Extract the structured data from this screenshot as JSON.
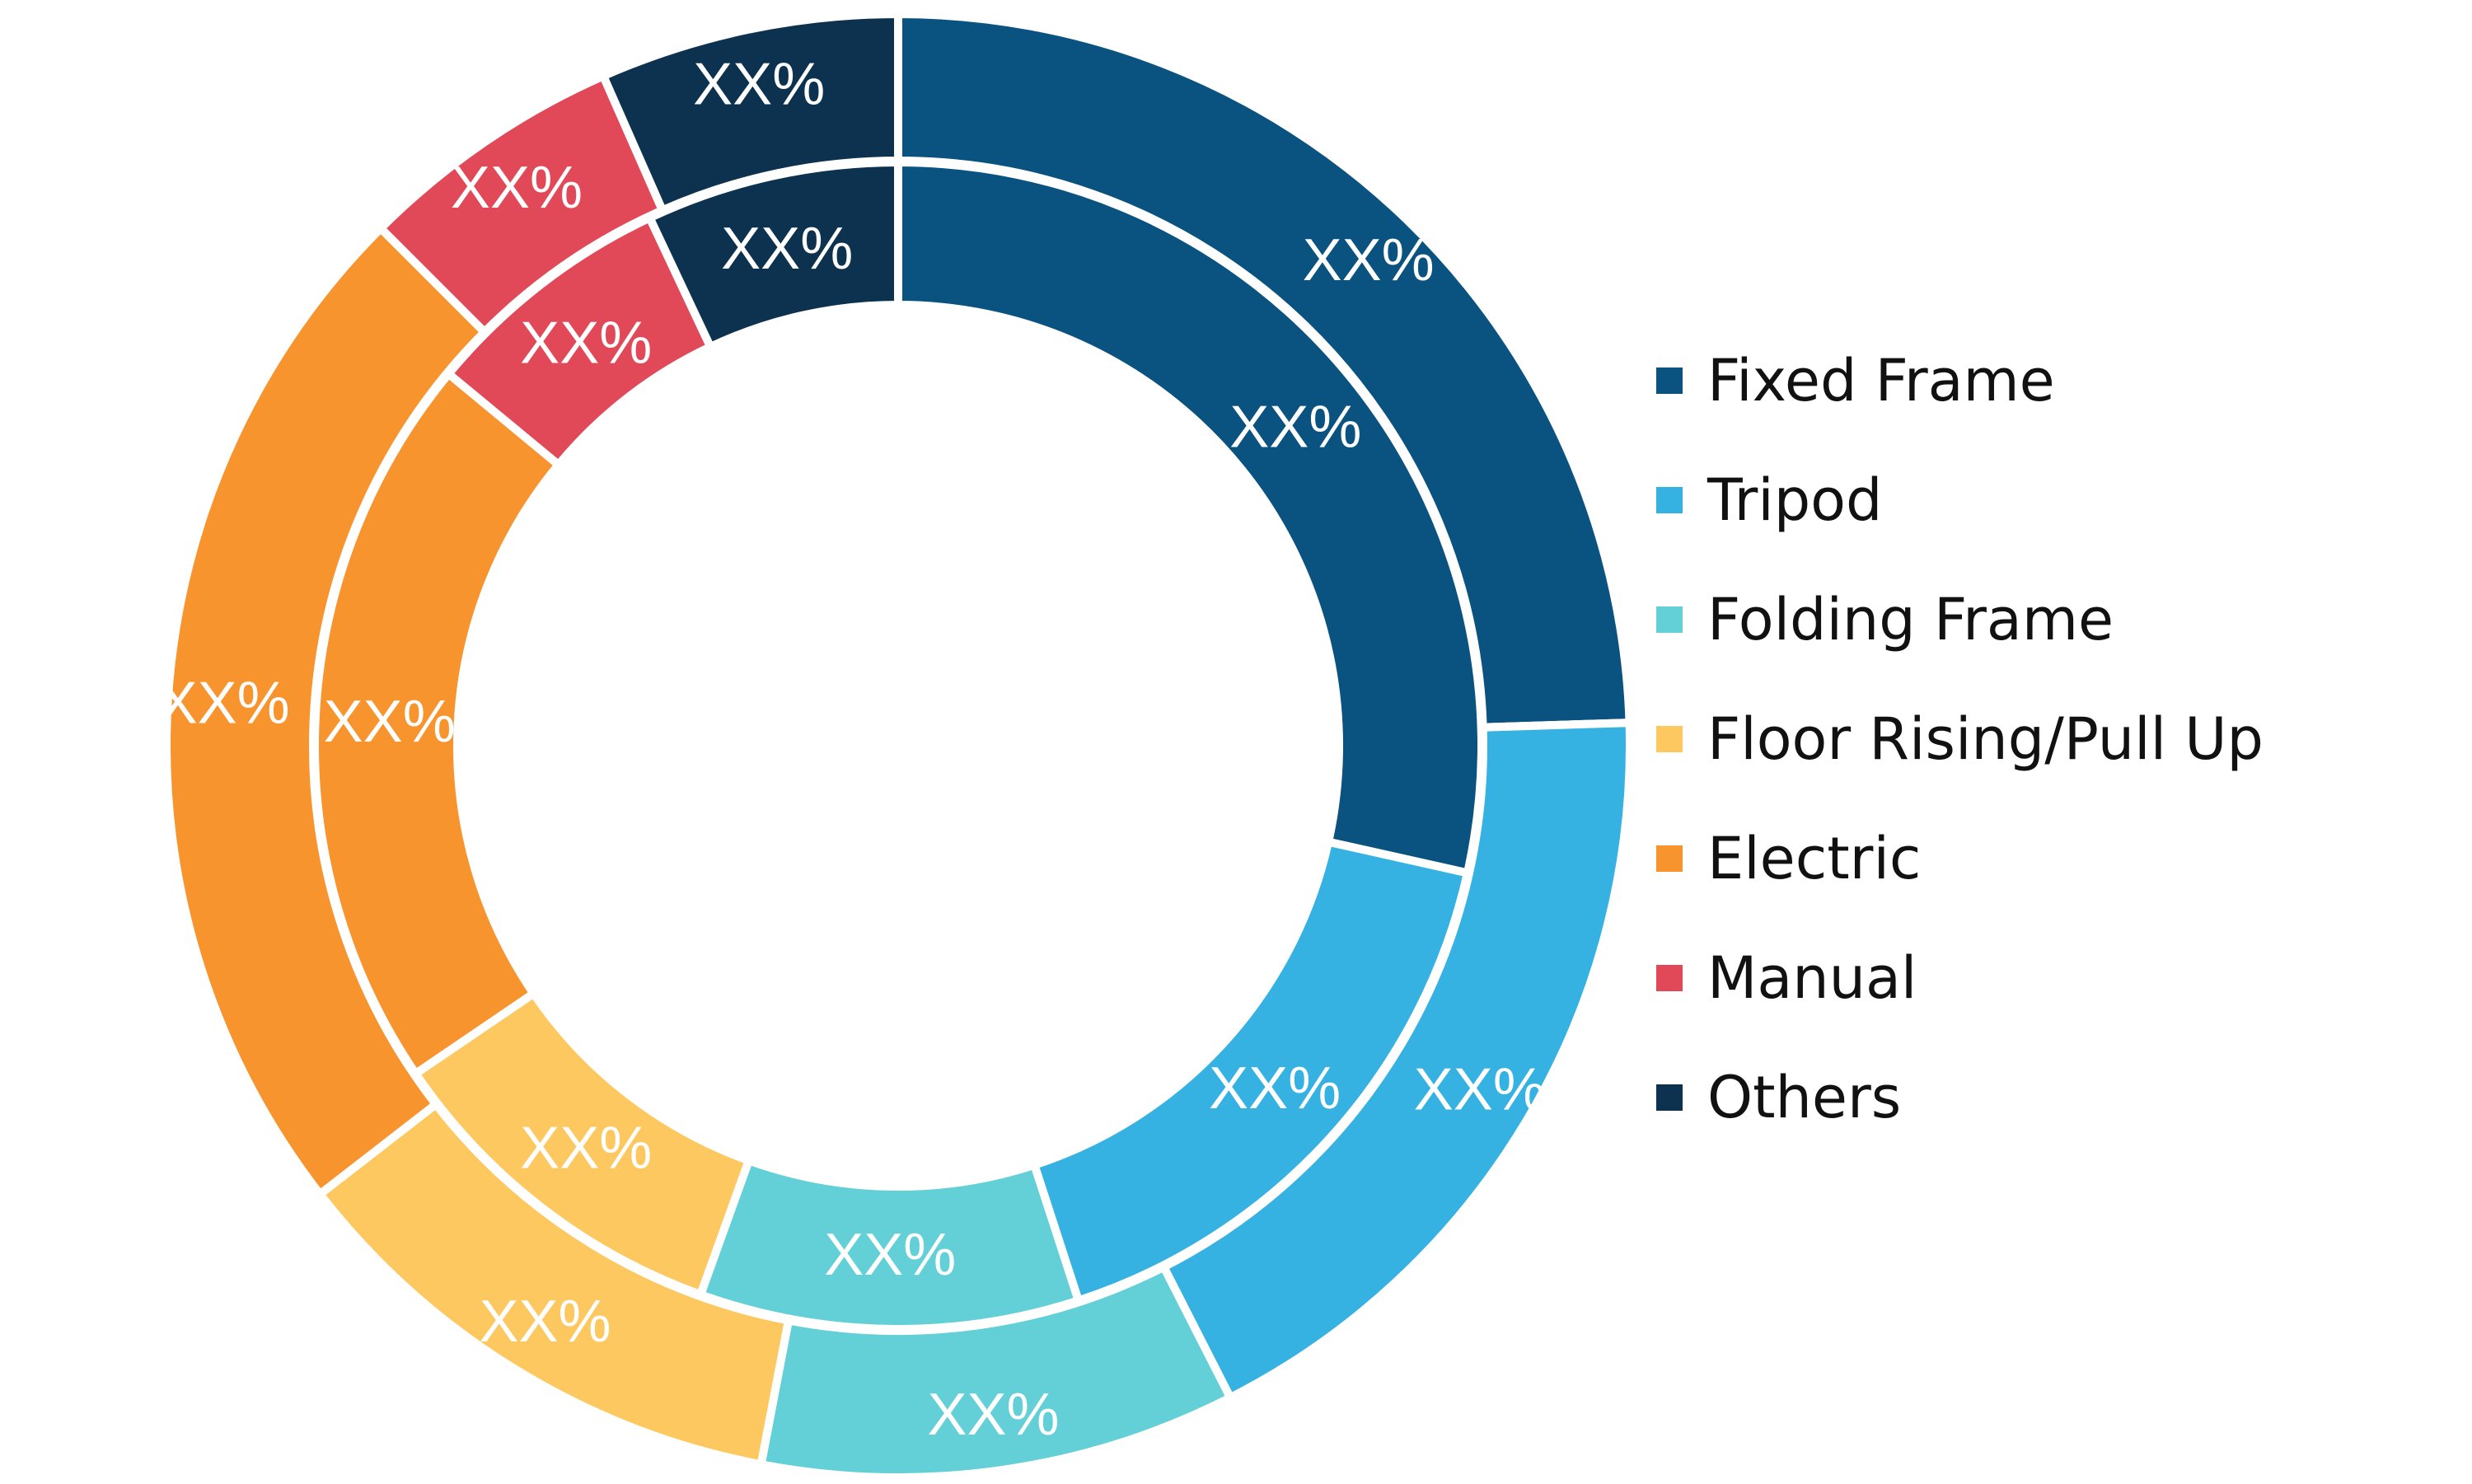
{
  "chart_data": {
    "type": "pie",
    "subtype": "double-donut",
    "title": "",
    "legend": {
      "placement": "right",
      "entries": [
        {
          "label": "Fixed Frame",
          "color": "#0a527f"
        },
        {
          "label": "Tripod",
          "color": "#35b1e2"
        },
        {
          "label": "Folding Frame",
          "color": "#63cfd7"
        },
        {
          "label": "Floor Rising/Pull Up",
          "color": "#fdc860"
        },
        {
          "label": "Electric",
          "color": "#f8942e"
        },
        {
          "label": "Manual",
          "color": "#e24958"
        },
        {
          "label": "Others",
          "color": "#0c3250"
        }
      ]
    },
    "rings": [
      {
        "name": "outer",
        "slices": [
          {
            "category": "Fixed Frame",
            "value": 24.5,
            "label": "XX%"
          },
          {
            "category": "Tripod",
            "value": 18.0,
            "label": "XX%"
          },
          {
            "category": "Folding Frame",
            "value": 10.5,
            "label": "XX%"
          },
          {
            "category": "Floor Rising/Pull Up",
            "value": 11.5,
            "label": "XX%"
          },
          {
            "category": "Electric",
            "value": 23.0,
            "label": "XX%"
          },
          {
            "category": "Manual",
            "value": 5.9,
            "label": "XX%"
          },
          {
            "category": "Others",
            "value": 6.6,
            "label": "XX%"
          }
        ]
      },
      {
        "name": "inner",
        "slices": [
          {
            "category": "Fixed Frame",
            "value": 28.5,
            "label": "XX%"
          },
          {
            "category": "Tripod",
            "value": 16.5,
            "label": "XX%"
          },
          {
            "category": "Folding Frame",
            "value": 10.5,
            "label": "XX%"
          },
          {
            "category": "Floor Rising/Pull Up",
            "value": 10.0,
            "label": "XX%"
          },
          {
            "category": "Electric",
            "value": 20.5,
            "label": "XX%"
          },
          {
            "category": "Manual",
            "value": 7.0,
            "label": "XX%"
          },
          {
            "category": "Others",
            "value": 7.0,
            "label": "XX%"
          }
        ]
      }
    ]
  }
}
